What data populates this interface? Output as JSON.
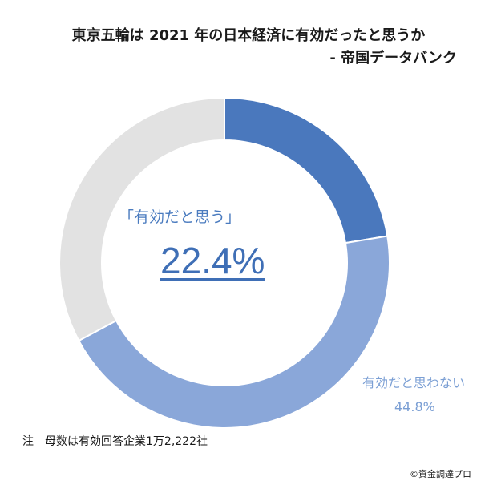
{
  "chart_data": {
    "type": "pie",
    "title_line1": "東京五輪は 2021 年の日本経済に有効だったと思うか",
    "title_line2": "- 帝国データバンク",
    "segments": [
      {
        "label": "「有効だと思う」",
        "value": 22.4,
        "value_label": "22.4%",
        "color": "#4a78bd"
      },
      {
        "label": "有効だと思わない",
        "value": 44.8,
        "value_label": "44.8%",
        "color": "#8aa7d9"
      },
      {
        "label": "",
        "value": 32.8,
        "value_label": "",
        "color": "#e2e2e2"
      }
    ]
  },
  "footnote": "注　母数は有効回答企業1万2,222社",
  "credit": "©資金調達プロ"
}
